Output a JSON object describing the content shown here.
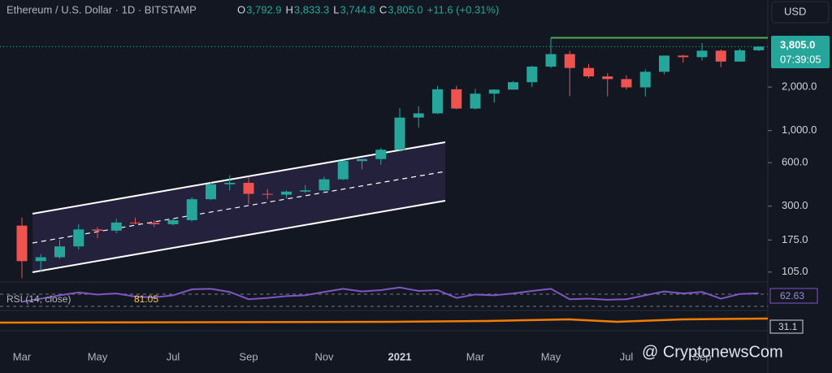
{
  "chart_data": {
    "type": "candlestick",
    "header": {
      "symbol": "Ethereum / U.S. Dollar · 1D · BITSTAMP",
      "ohlc": [
        {
          "key": "O",
          "value": "3,792.9"
        },
        {
          "key": "H",
          "value": "3,833.3"
        },
        {
          "key": "L",
          "value": "3,744.8"
        },
        {
          "key": "C",
          "value": "3,805.0"
        }
      ],
      "change": "+11.6 (+0.31%)"
    },
    "currency": "USD",
    "last_price_label": "3,805.0",
    "countdown": "07:39:05",
    "log_scale": true,
    "ylim": [
      92,
      8000
    ],
    "yticks": [
      {
        "value": 105,
        "label": "105.0"
      },
      {
        "value": 175,
        "label": "175.0"
      },
      {
        "value": 300,
        "label": "300.0"
      },
      {
        "value": 600,
        "label": "600.0"
      },
      {
        "value": 1000,
        "label": "1,000.0"
      },
      {
        "value": 2000,
        "label": "2,000.0"
      }
    ],
    "categories": [
      "Mar",
      null,
      null,
      null,
      "May",
      null,
      null,
      null,
      "Jul",
      null,
      null,
      null,
      "Sep",
      null,
      null,
      null,
      "Nov",
      null,
      null,
      null,
      "2021",
      null,
      null,
      null,
      "Mar",
      null,
      null,
      null,
      "May",
      null,
      null,
      null,
      "Jul",
      null,
      null,
      null,
      "Sep",
      null,
      null,
      null
    ],
    "up_color": "#26a69a",
    "down_color": "#ef5350",
    "open": [
      220,
      125,
      133,
      158,
      207,
      203,
      231,
      230,
      225,
      240,
      335,
      425,
      435,
      365,
      360,
      378,
      386,
      460,
      615,
      635,
      737,
      1230,
      1315,
      1930,
      1420,
      1800,
      1920,
      2160,
      2770,
      3380,
      2710,
      2370,
      2270,
      1990,
      2550,
      3300,
      3220,
      3570,
      3000,
      3590
    ],
    "high": [
      250,
      140,
      175,
      225,
      215,
      245,
      250,
      240,
      245,
      345,
      440,
      490,
      480,
      395,
      385,
      420,
      480,
      620,
      635,
      760,
      1430,
      1475,
      2040,
      2040,
      1940,
      1930,
      2200,
      2800,
      4380,
      3560,
      2890,
      2500,
      2410,
      2650,
      3300,
      3340,
      4030,
      3640,
      3680,
      3833
    ],
    "low": [
      95,
      105,
      130,
      150,
      180,
      195,
      225,
      215,
      220,
      235,
      330,
      385,
      310,
      335,
      340,
      370,
      370,
      455,
      540,
      580,
      715,
      1050,
      1300,
      1400,
      1400,
      1560,
      1920,
      2000,
      2700,
      1730,
      2300,
      1720,
      1920,
      1720,
      2450,
      2950,
      3050,
      2740,
      2980,
      3545
    ],
    "close": [
      125,
      133,
      158,
      207,
      203,
      231,
      230,
      225,
      240,
      335,
      425,
      435,
      365,
      360,
      378,
      386,
      460,
      615,
      635,
      737,
      1230,
      1315,
      1930,
      1420,
      1800,
      1920,
      2160,
      2770,
      3380,
      2710,
      2370,
      2270,
      1990,
      2550,
      3300,
      3220,
      3570,
      3000,
      3590,
      3805
    ],
    "rsi_title": "RSI (14, close)",
    "rsi_ma_label": "81.05",
    "rsi_label": "62.63",
    "rsi_color": "#7e57c2",
    "rsi_ylim": [
      0,
      100
    ],
    "rsi": [
      30,
      42,
      55,
      66,
      58,
      62,
      50,
      47,
      55,
      78,
      80,
      68,
      40,
      45,
      52,
      55,
      68,
      80,
      70,
      75,
      85,
      72,
      75,
      45,
      58,
      55,
      62,
      72,
      80,
      40,
      42,
      38,
      40,
      55,
      70,
      62,
      68,
      42,
      60,
      63
    ],
    "second_label": "31.1",
    "watermark": "@ CryptonewsCom"
  }
}
